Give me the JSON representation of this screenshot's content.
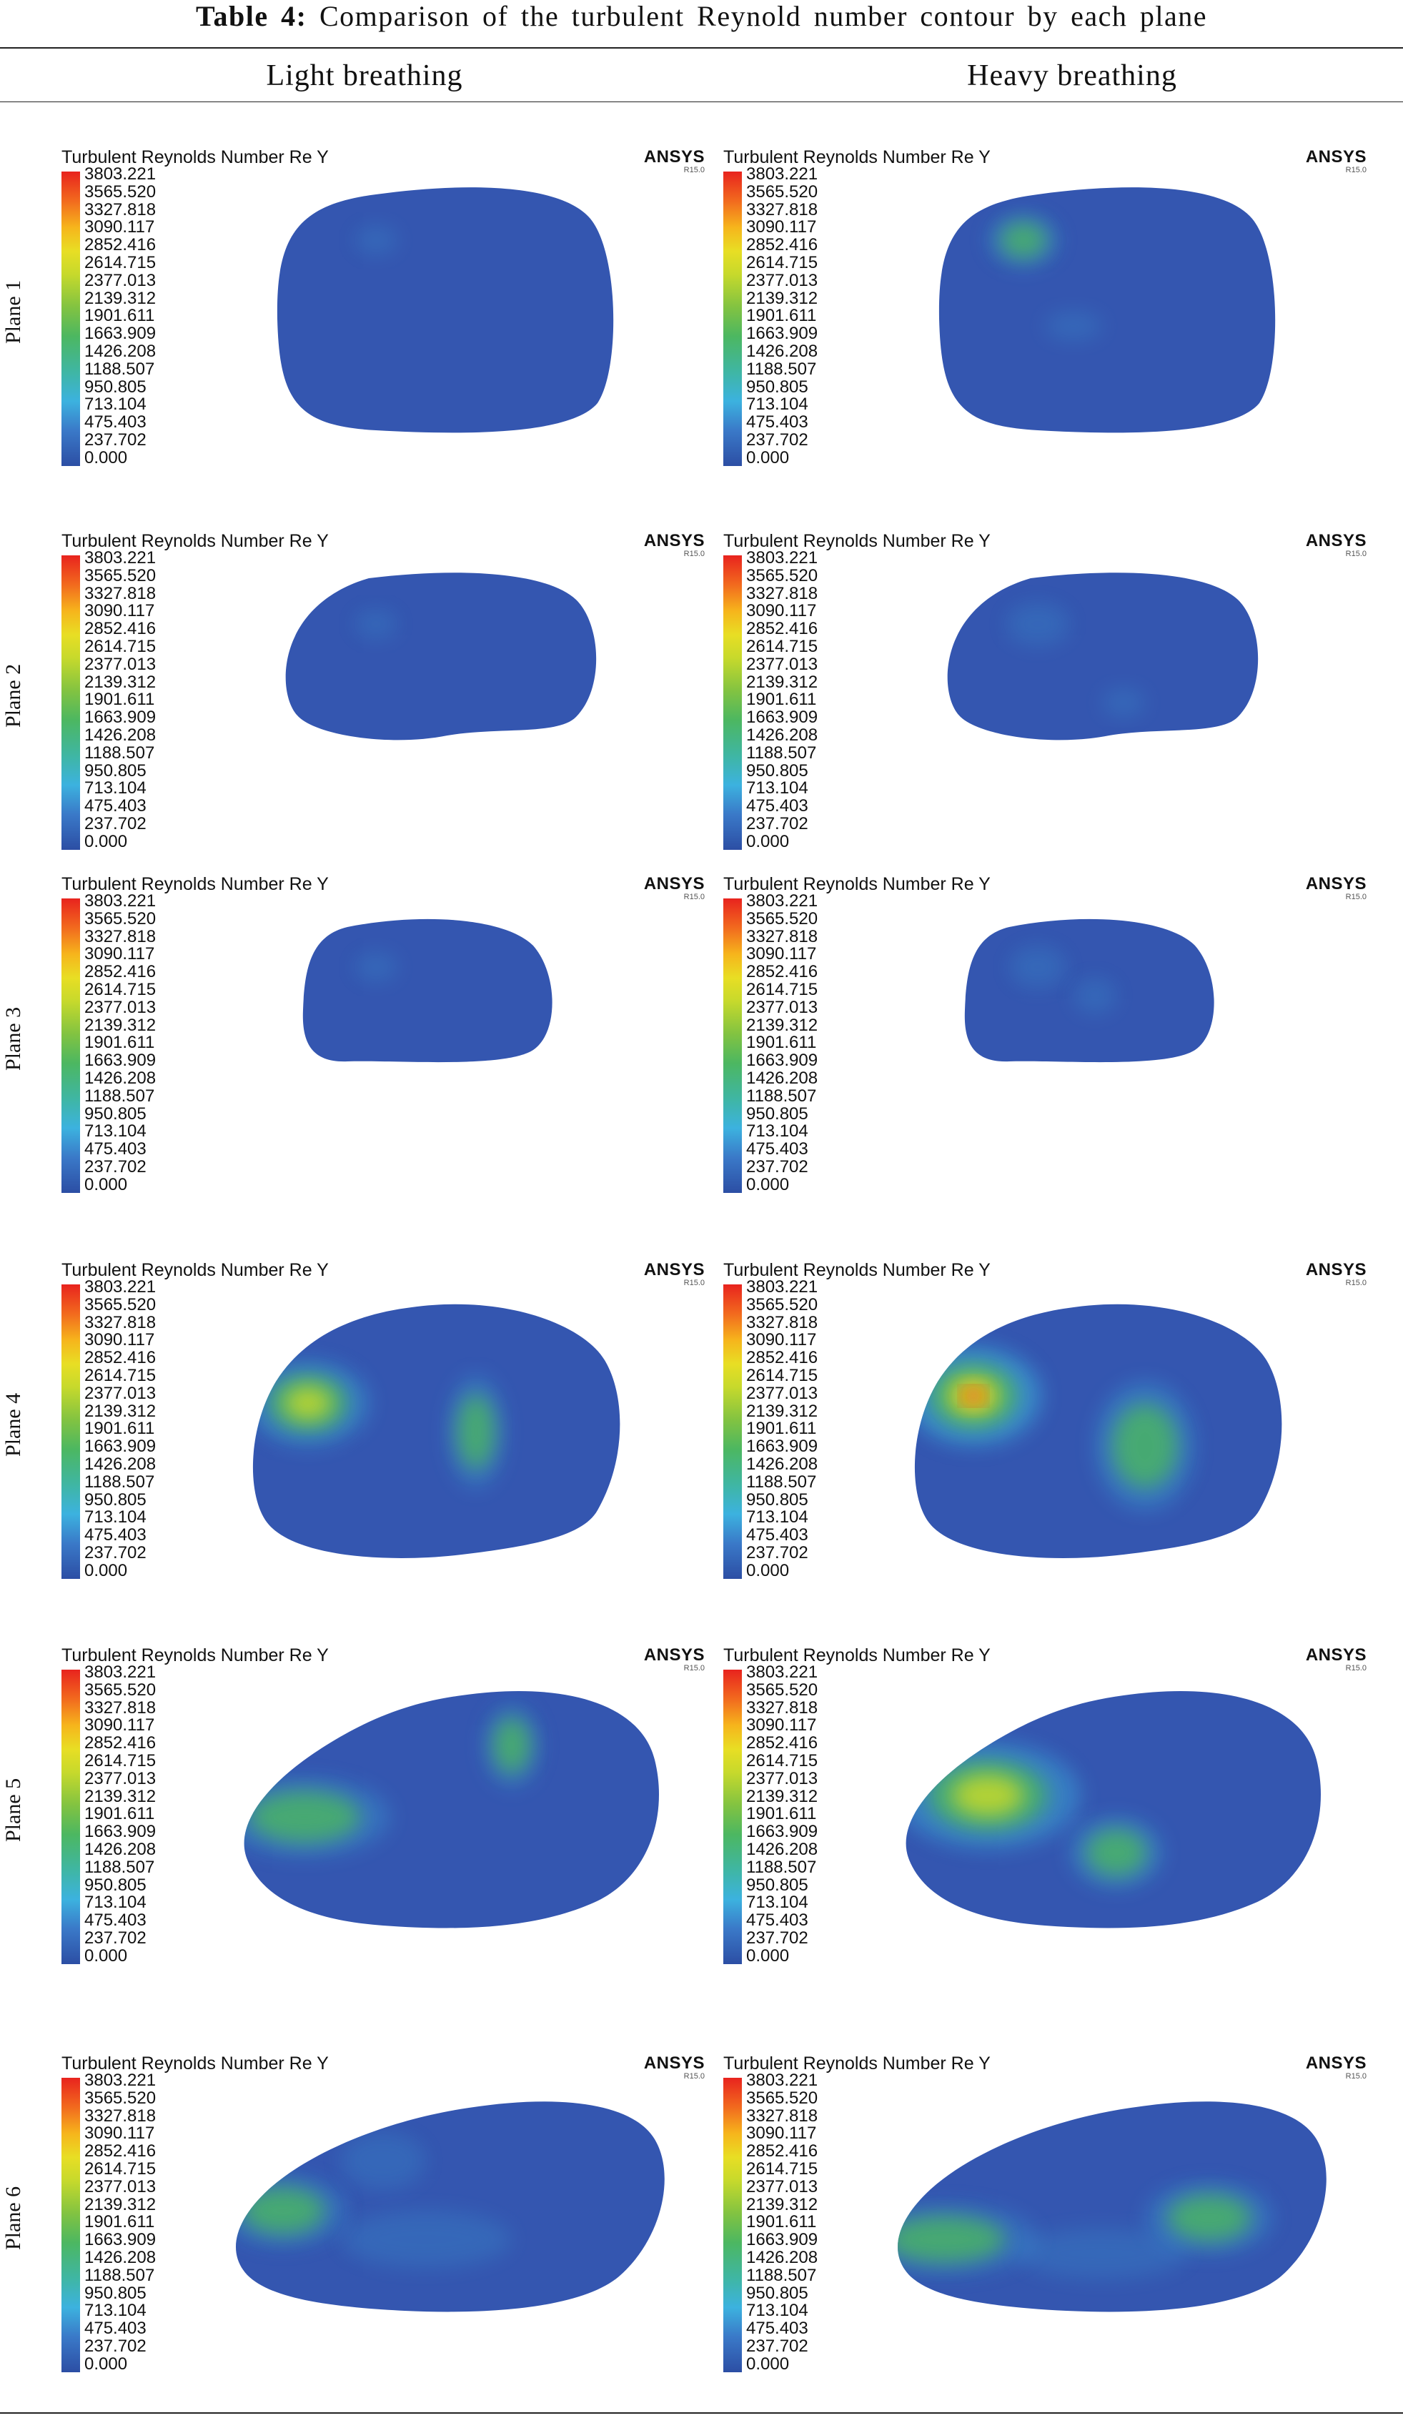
{
  "caption": {
    "label": "Table 4:",
    "text": "Comparison of the turbulent Reynold number contour by each plane"
  },
  "columns": [
    "Light breathing",
    "Heavy breathing"
  ],
  "rows": [
    "Plane 1",
    "Plane 2",
    "Plane 3",
    "Plane 4",
    "Plane 5",
    "Plane 6"
  ],
  "panel": {
    "title": "Turbulent Reynolds Number Re Y",
    "brand": "ANSYS",
    "version": "R15.0",
    "legend_values": [
      "3803.221",
      "3565.520",
      "3327.818",
      "3090.117",
      "2852.416",
      "2614.715",
      "2377.013",
      "2139.312",
      "1901.611",
      "1663.909",
      "1426.208",
      "1188.507",
      "950.805",
      "713.104",
      "475.403",
      "237.702",
      "0.000"
    ]
  },
  "colors": {
    "contour_base": "#3456b0",
    "low": "#3cb2df",
    "mid": "#4cb761",
    "high": "#e8231e"
  }
}
